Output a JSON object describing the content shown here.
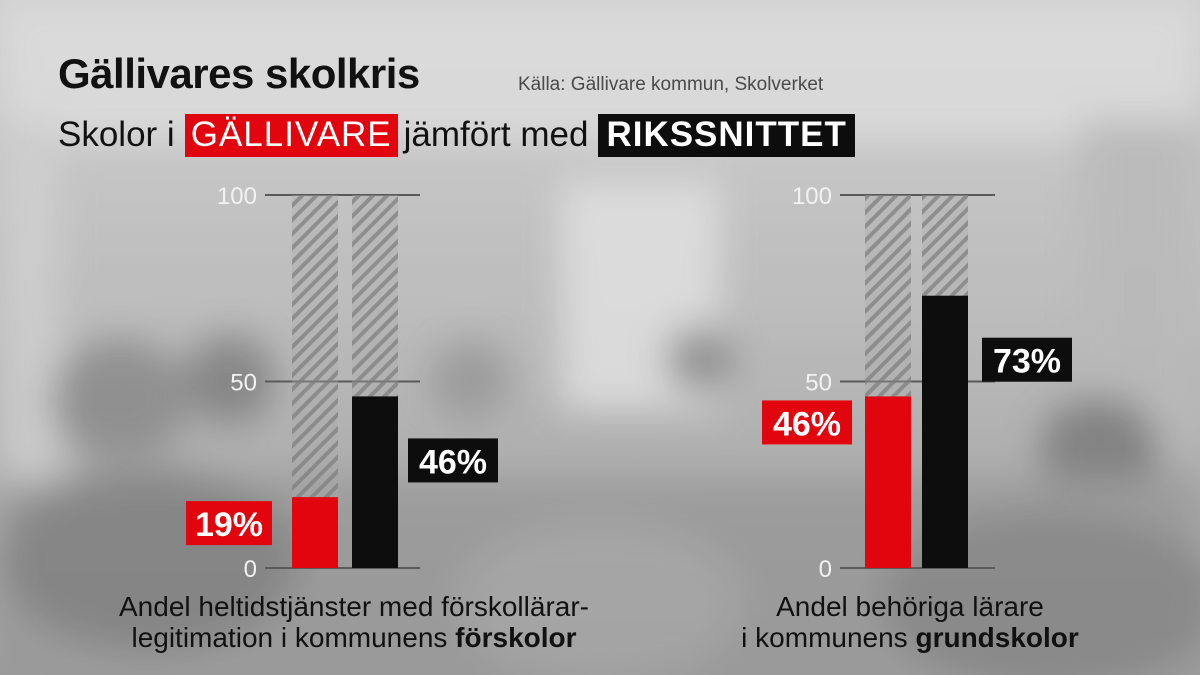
{
  "header": {
    "title": "Gällivares skolkris",
    "source": "Källa: Gällivare kommun, Skolverket",
    "subtitle_prefix": "Skolor i",
    "subtitle_red": "GÄLLIVARE",
    "subtitle_middle": "jämfört med",
    "subtitle_black": "RIKSSNITTET"
  },
  "colors": {
    "gallivare": "#e2050e",
    "riks": "#0d0d0d",
    "text": "#111111"
  },
  "chart_data": [
    {
      "type": "bar",
      "ylim": [
        0,
        100
      ],
      "yticks": [
        "0",
        "50",
        "100"
      ],
      "series": [
        {
          "name": "GÄLLIVARE",
          "value": 19,
          "label": "19%"
        },
        {
          "name": "RIKSSNITTET",
          "value": 46,
          "label": "46%"
        }
      ],
      "caption_line1": "Andel heltidstjänster med förskollärar-",
      "caption_line2_prefix": "legitimation i kommunens",
      "caption_line2_bold": "förskolor"
    },
    {
      "type": "bar",
      "ylim": [
        0,
        100
      ],
      "yticks": [
        "0",
        "50",
        "100"
      ],
      "series": [
        {
          "name": "GÄLLIVARE",
          "value": 46,
          "label": "46%"
        },
        {
          "name": "RIKSSNITTET",
          "value": 73,
          "label": "73%"
        }
      ],
      "caption_line1": "Andel behöriga lärare",
      "caption_line2_prefix": "i kommunens",
      "caption_line2_bold": "grundskolor"
    }
  ]
}
